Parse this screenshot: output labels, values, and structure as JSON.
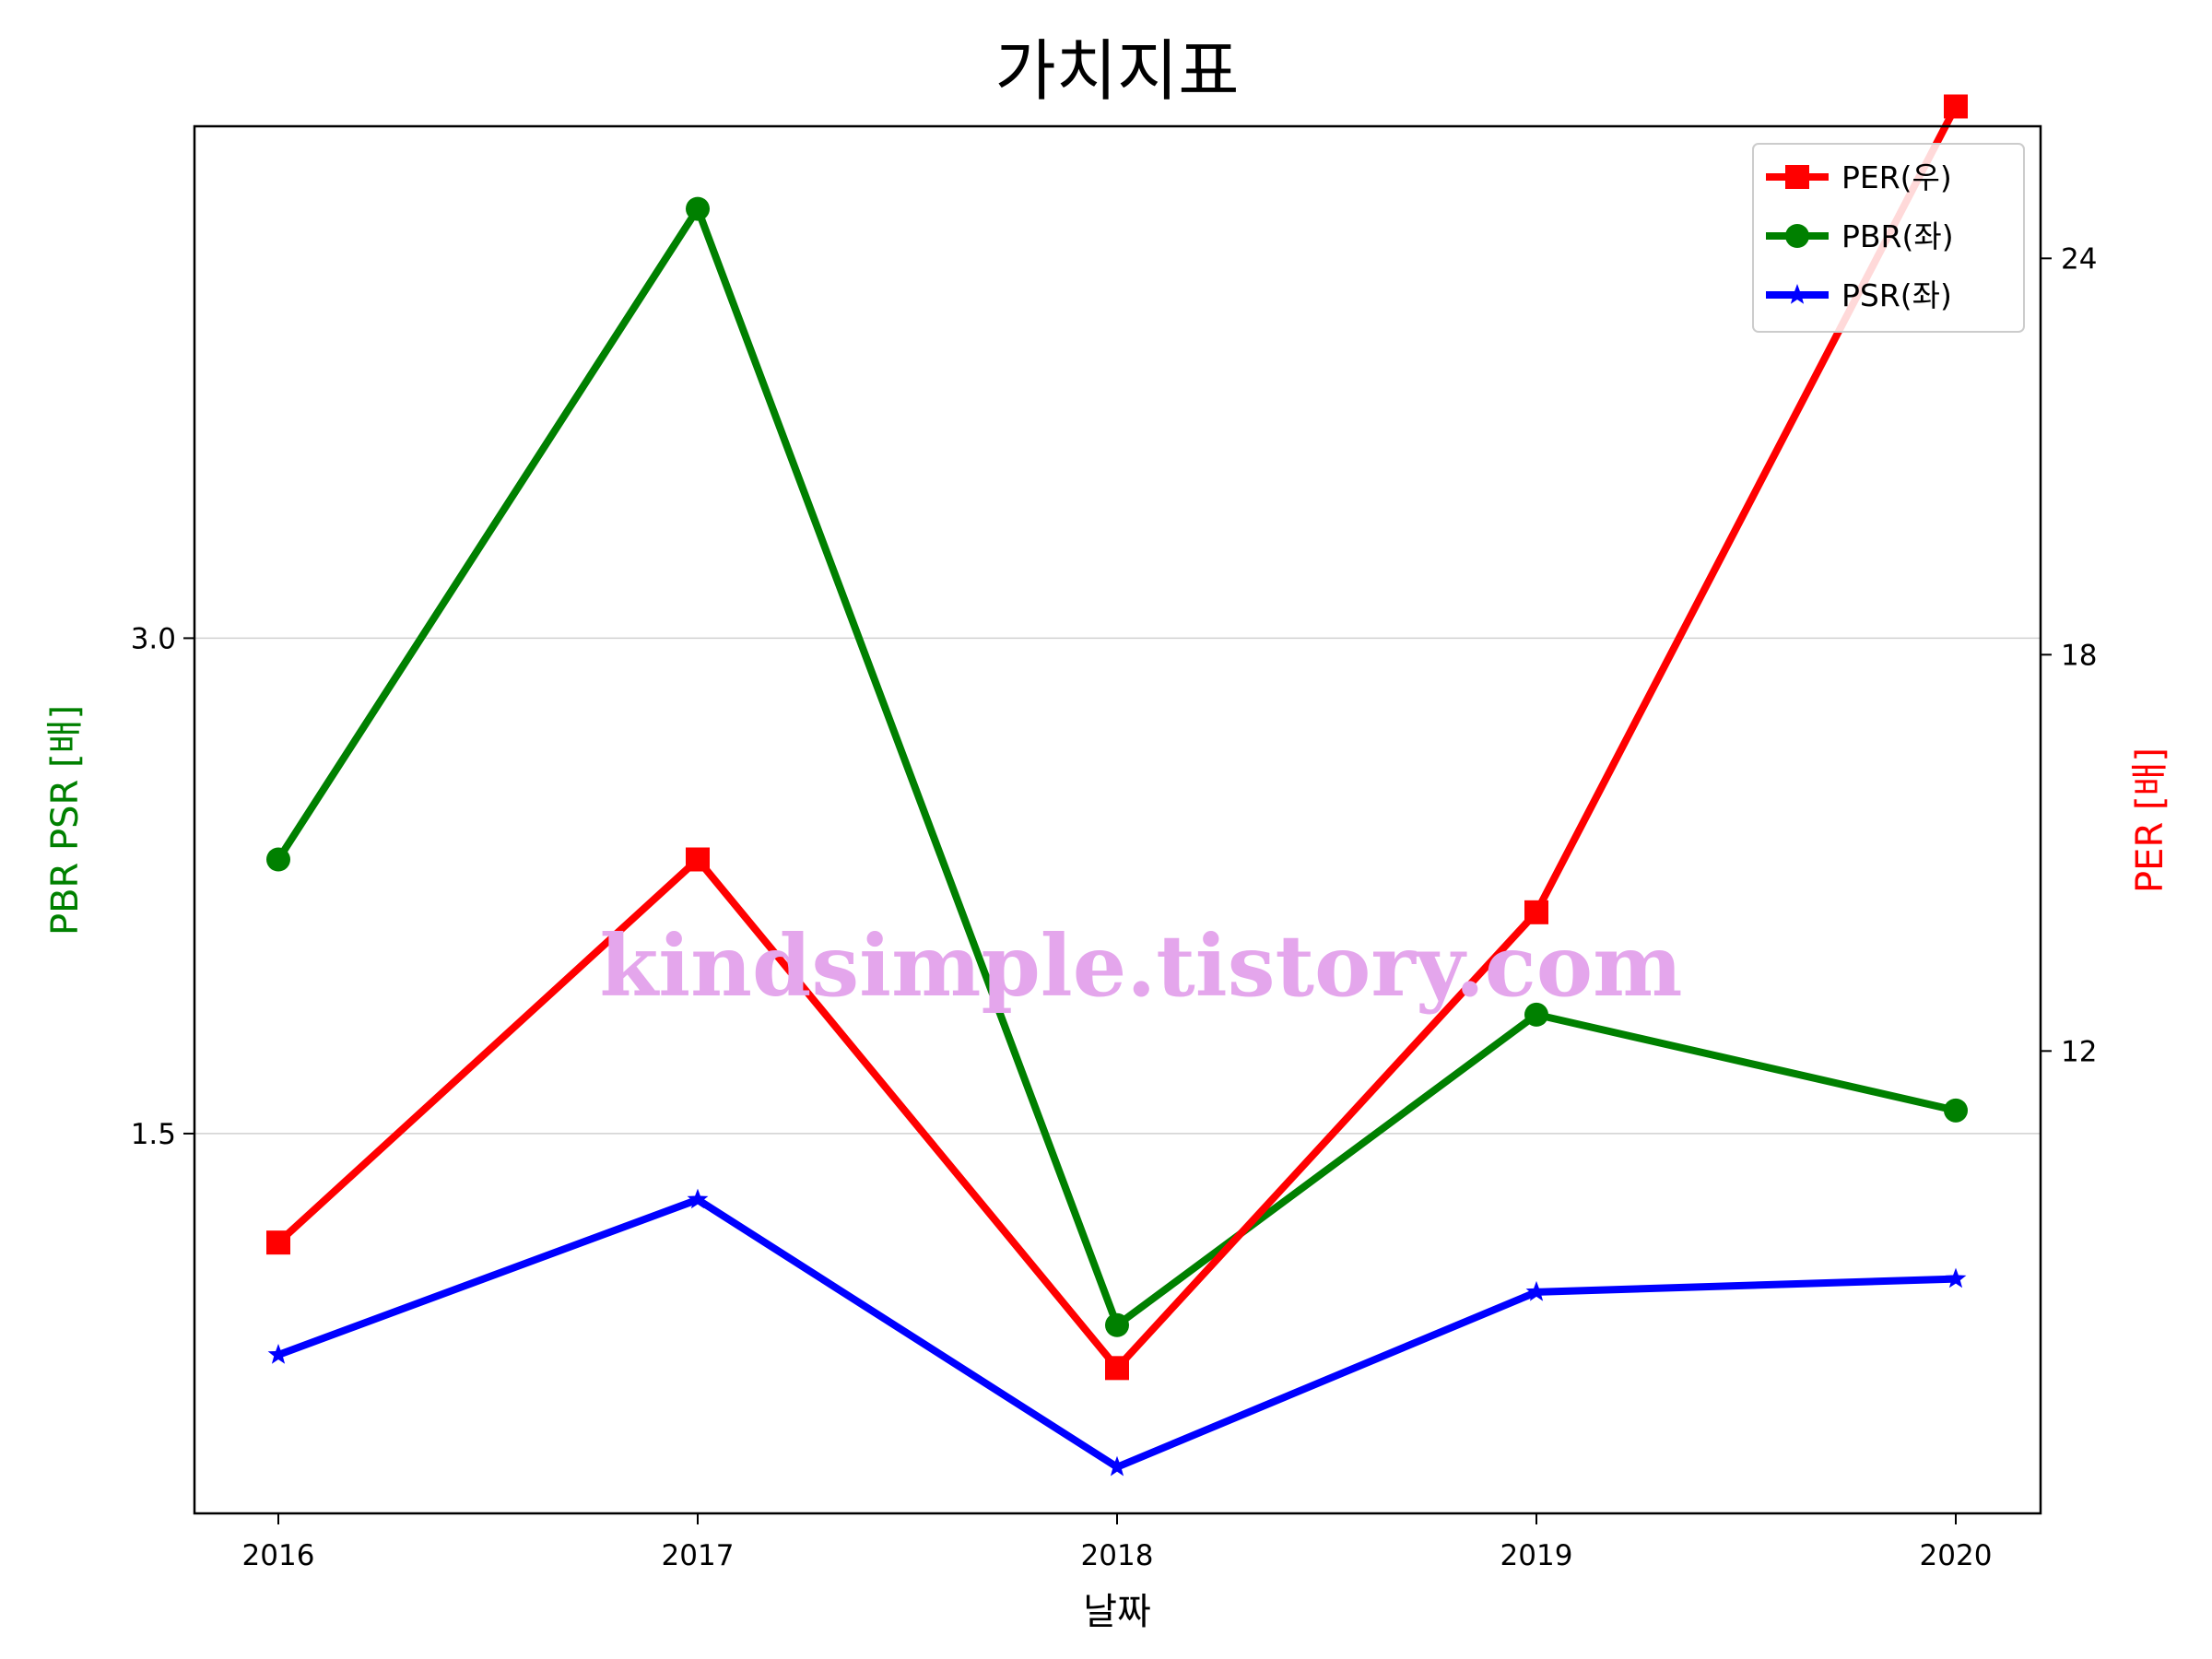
{
  "chart_data": {
    "type": "line",
    "title": "가치지표",
    "xlabel": "날짜",
    "ylabel_left": "PBR PSR [배]",
    "ylabel_right": "PER [배]",
    "categories": [
      "2016",
      "2017",
      "2018",
      "2019",
      "2020"
    ],
    "left_axis": {
      "ylim": [
        0.35,
        4.55
      ],
      "ticks": [
        1.5,
        3.0
      ],
      "tick_labels": [
        "1.5",
        "3.0"
      ],
      "color": "#008000"
    },
    "right_axis": {
      "ylim": [
        5.0,
        26.0
      ],
      "ticks": [
        12,
        18,
        24
      ],
      "tick_labels": [
        "12",
        "18",
        "24"
      ],
      "color": "#ff0000"
    },
    "grid": "horizontal (left axis)",
    "legend_position": "top-right",
    "series": [
      {
        "name": "PER(우)",
        "axis": "right",
        "color": "#ff0000",
        "marker": "square",
        "values": [
          9.1,
          14.9,
          7.2,
          14.1,
          26.3
        ]
      },
      {
        "name": "PBR(좌)",
        "axis": "left",
        "color": "#008000",
        "marker": "circle",
        "values": [
          2.33,
          4.3,
          0.92,
          1.86,
          1.57
        ]
      },
      {
        "name": "PSR(좌)",
        "axis": "left",
        "color": "#0000ff",
        "marker": "star",
        "values": [
          0.83,
          1.3,
          0.49,
          1.02,
          1.06
        ]
      }
    ],
    "watermark": "kindsimple.tistory.com"
  }
}
